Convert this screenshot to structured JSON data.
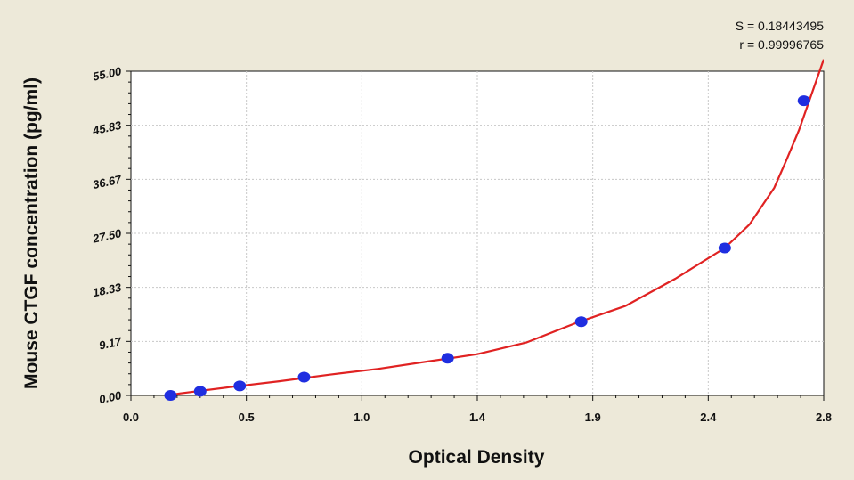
{
  "chart_data": {
    "type": "scatter",
    "title": "",
    "xlabel": "Optical Density",
    "ylabel": "Mouse CTGF concentration (pg/ml)",
    "xlim": [
      0.0,
      2.8
    ],
    "ylim": [
      0.0,
      55.0
    ],
    "x_ticks": [
      "0.0",
      "0.5",
      "1.0",
      "1.4",
      "1.9",
      "2.4",
      "2.8"
    ],
    "y_ticks": [
      "0.00",
      "9.17",
      "18.33",
      "27.50",
      "36.67",
      "45.83",
      "55.00"
    ],
    "grid": "on",
    "annotations": {
      "s_value": "S = 0.18443495",
      "r_value": "r = 0.99996765"
    },
    "series": [
      {
        "type": "scatter",
        "x": [
          0.16,
          0.28,
          0.44,
          0.7,
          1.28,
          1.82,
          2.4,
          2.72
        ],
        "y": [
          0.0,
          0.7,
          1.6,
          3.1,
          6.3,
          12.5,
          25.0,
          50.0
        ]
      },
      {
        "type": "line",
        "x": [
          0.1,
          0.2,
          0.4,
          0.6,
          0.8,
          1.0,
          1.2,
          1.4,
          1.6,
          1.8,
          2.0,
          2.2,
          2.4,
          2.5,
          2.6,
          2.65,
          2.7,
          2.75,
          2.8
        ],
        "y": [
          -0.3,
          0.35,
          1.4,
          2.4,
          3.5,
          4.5,
          5.75,
          7.0,
          9.0,
          12.3,
          15.2,
          19.8,
          25.0,
          29.0,
          35.2,
          40.0,
          45.0,
          51.0,
          57.0
        ]
      }
    ],
    "colors": {
      "background": "#ede9d9",
      "plot_area": "#ffffff",
      "points": "#1f2ee0",
      "curve": "#e02222",
      "grid": "#c8c8c8"
    }
  }
}
